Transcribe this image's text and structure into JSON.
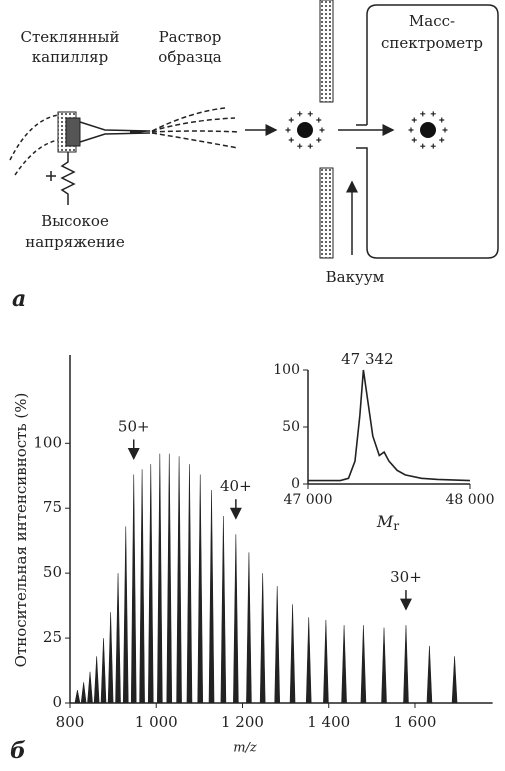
{
  "diagram": {
    "label": "a",
    "capillary": [
      "Стеклянный",
      "капилляр"
    ],
    "solution": [
      "Раствор",
      "образца"
    ],
    "spectrometer": [
      "Масс-",
      "спектрометр"
    ],
    "voltage": [
      "Высокое",
      "напряжение"
    ],
    "vacuum": "Вакуум"
  },
  "chart_data": [
    {
      "type": "bar",
      "panel_label": "б",
      "ylabel": "Относительная интенсивность (%)",
      "xlabel": "m/z",
      "x": [
        817.2,
        831.6,
        846.4,
        861.8,
        877.7,
        894.2,
        911.4,
        929.3,
        947.8,
        967.2,
        987.3,
        1008.3,
        1030.2,
        1053.0,
        1077.0,
        1102.0,
        1128.2,
        1155.7,
        1184.6,
        1214.9,
        1246.8,
        1280.5,
        1316.1,
        1353.6,
        1393.4,
        1435.6,
        1480.4,
        1528.2,
        1579.1,
        1633.5,
        1691.8
      ],
      "values": [
        5,
        8,
        12,
        18,
        25,
        35,
        50,
        68,
        88,
        90,
        92,
        96,
        96,
        95,
        92,
        88,
        82,
        72,
        65,
        58,
        50,
        45,
        38,
        33,
        32,
        30,
        30,
        29,
        30,
        22,
        18
      ],
      "color": "#222222",
      "xlim": [
        800,
        1780
      ],
      "ylim": [
        0,
        134
      ],
      "xticks": [
        800,
        {
          "value": 1000,
          "label": "1 000"
        },
        {
          "value": 1200,
          "label": "1 200"
        },
        {
          "value": 1400,
          "label": "1 400"
        },
        {
          "value": 1600,
          "label": "1 600"
        }
      ],
      "yticks": [
        0,
        25,
        50,
        75,
        100
      ],
      "annotations": [
        {
          "label": "50+",
          "x": 947.8,
          "y": 93
        },
        {
          "label": "40+",
          "x": 1184.6,
          "y": 70
        },
        {
          "label": "30+",
          "x": 1579.1,
          "y": 35
        }
      ]
    },
    {
      "type": "line",
      "xlabel": {
        "main": "M",
        "sub": "r"
      },
      "x": [
        47000,
        47200,
        47250,
        47290,
        47320,
        47342,
        47370,
        47400,
        47440,
        47470,
        47500,
        47550,
        47600,
        47700,
        47800,
        48000
      ],
      "values": [
        3,
        3,
        5,
        20,
        60,
        100,
        72,
        42,
        25,
        28,
        20,
        12,
        8,
        5,
        4,
        3
      ],
      "color": "#222222",
      "xlim": [
        47000,
        48000
      ],
      "ylim": [
        0,
        100
      ],
      "xticks": [
        {
          "value": 47000,
          "label": "47 000"
        },
        {
          "value": 48000,
          "label": "48 000"
        }
      ],
      "yticks": [
        0,
        50,
        100
      ],
      "annotations": [
        {
          "label": "47 342",
          "x": 47342,
          "y": 100
        }
      ]
    }
  ]
}
